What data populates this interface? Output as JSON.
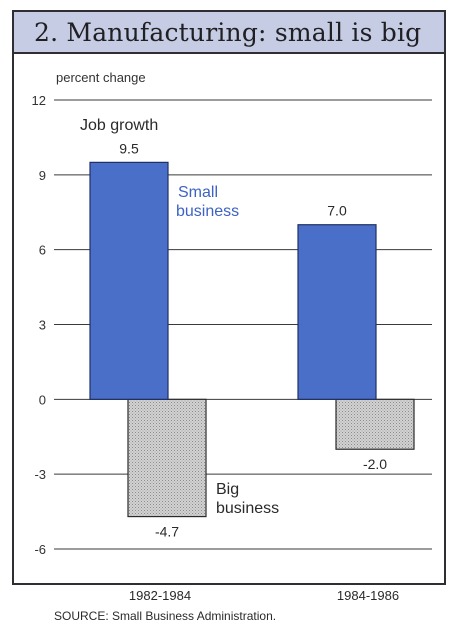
{
  "page": {
    "title": "2. Manufacturing: small is big",
    "source": "SOURCE: Small Business Administration."
  },
  "chart_data": {
    "type": "bar",
    "title": "2. Manufacturing: small is big",
    "ylabel": "percent change",
    "ylim": [
      -6,
      12
    ],
    "yticks": [
      12,
      9,
      6,
      3,
      0,
      -3,
      -6
    ],
    "grid": true,
    "categories": [
      "1982-1984",
      "1984-1986"
    ],
    "series": [
      {
        "name": "Small business",
        "values": [
          9.5,
          7.0
        ],
        "color": "#4a6fc8"
      },
      {
        "name": "Big business",
        "values": [
          -4.7,
          -2.0
        ],
        "color": "#cfcfcf"
      }
    ],
    "data_labels": [
      "9.5",
      "7.0",
      "-4.7",
      "-2.0"
    ],
    "annotations": {
      "job_growth": "Job growth",
      "small_line1": "Small",
      "small_line2": "business",
      "big_line1": "Big",
      "big_line2": "business"
    }
  }
}
